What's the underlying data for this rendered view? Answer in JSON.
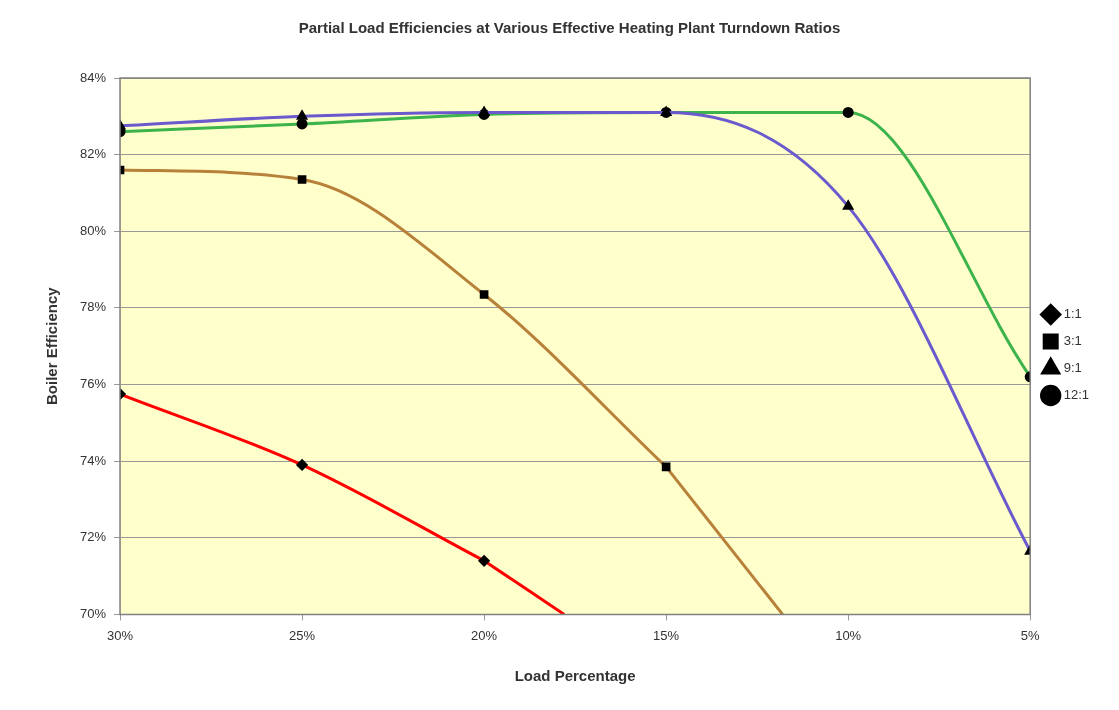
{
  "chart_data": {
    "type": "line",
    "title": "Partial Load Efficiencies at Various Effective Heating Plant Turndown Ratios",
    "xlabel": "Load Percentage",
    "ylabel": "Boiler Efficiency",
    "xlim": [
      30,
      5
    ],
    "xticks": [
      {
        "value": 30,
        "label": "30%"
      },
      {
        "value": 25,
        "label": "25%"
      },
      {
        "value": 20,
        "label": "20%"
      },
      {
        "value": 15,
        "label": "15%"
      },
      {
        "value": 10,
        "label": "10%"
      },
      {
        "value": 5,
        "label": "5%"
      }
    ],
    "ylim": [
      70,
      84
    ],
    "yticks": [
      {
        "value": 70,
        "label": "70%"
      },
      {
        "value": 72,
        "label": "72%"
      },
      {
        "value": 74,
        "label": "74%"
      },
      {
        "value": 76,
        "label": "76%"
      },
      {
        "value": 78,
        "label": "78%"
      },
      {
        "value": 80,
        "label": "80%"
      },
      {
        "value": 82,
        "label": "82%"
      },
      {
        "value": 84,
        "label": "84%"
      }
    ],
    "grid": "y",
    "legend": "right",
    "series": [
      {
        "name": "1:1",
        "color": "#ff0000",
        "marker": "diamond",
        "x": [
          30,
          25,
          20
        ],
        "values": [
          75.75,
          73.9,
          71.4
        ]
      },
      {
        "name": "3:1",
        "color": "#b8813a",
        "marker": "square",
        "x": [
          30,
          25,
          20,
          15
        ],
        "values": [
          81.6,
          81.35,
          78.35,
          73.85
        ]
      },
      {
        "name": "9:1",
        "color": "#6a5acd",
        "marker": "triangle",
        "x": [
          30,
          25,
          20,
          15,
          10,
          5
        ],
        "values": [
          82.75,
          83.0,
          83.1,
          83.1,
          80.65,
          71.65
        ]
      },
      {
        "name": "12:1",
        "color": "#3cb44b",
        "marker": "circle",
        "x": [
          30,
          25,
          20,
          15,
          10,
          5
        ],
        "values": [
          82.6,
          82.8,
          83.05,
          83.1,
          83.1,
          76.2
        ]
      },
      {
        "color": "#ff0000",
        "marker": "none",
        "x": [
          20,
          17.8
        ],
        "values": [
          71.4,
          70
        ]
      },
      {
        "color": "#b8813a",
        "marker": "none",
        "x": [
          15,
          11.8
        ],
        "values": [
          73.85,
          70
        ]
      }
    ]
  }
}
